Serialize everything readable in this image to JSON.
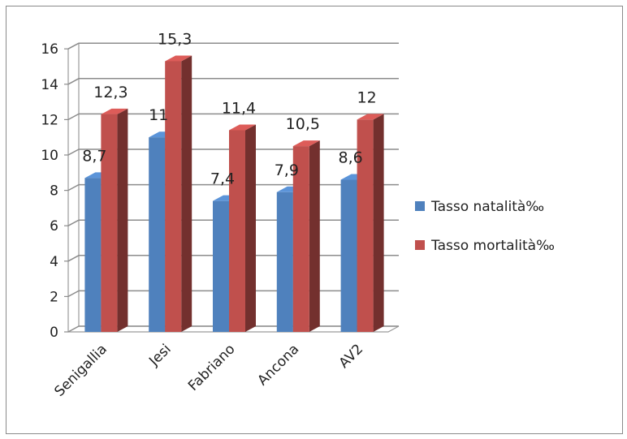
{
  "chart_data": {
    "type": "bar",
    "title": "",
    "xlabel": "",
    "ylabel": "",
    "categories": [
      "Senigallia",
      "Jesi",
      "Fabriano",
      "Ancona",
      "AV2"
    ],
    "series": [
      {
        "name": "Tasso natalità‰",
        "values": [
          8.7,
          11,
          7.4,
          7.9,
          8.6
        ],
        "labels": [
          "8,7",
          "11",
          "7,4",
          "7,9",
          "8,6"
        ],
        "color": "#4f81bd"
      },
      {
        "name": "Tasso mortalità‰",
        "values": [
          12.3,
          15.3,
          11.4,
          10.5,
          12
        ],
        "labels": [
          "12,3",
          "15,3",
          "11,4",
          "10,5",
          "12"
        ],
        "color": "#c0504d"
      }
    ],
    "ylim": [
      0,
      16
    ],
    "yticks": [
      "0",
      "2",
      "4",
      "6",
      "8",
      "10",
      "12",
      "14",
      "16"
    ],
    "grid": true,
    "legend": "right",
    "style": "3d-clustered-column"
  }
}
